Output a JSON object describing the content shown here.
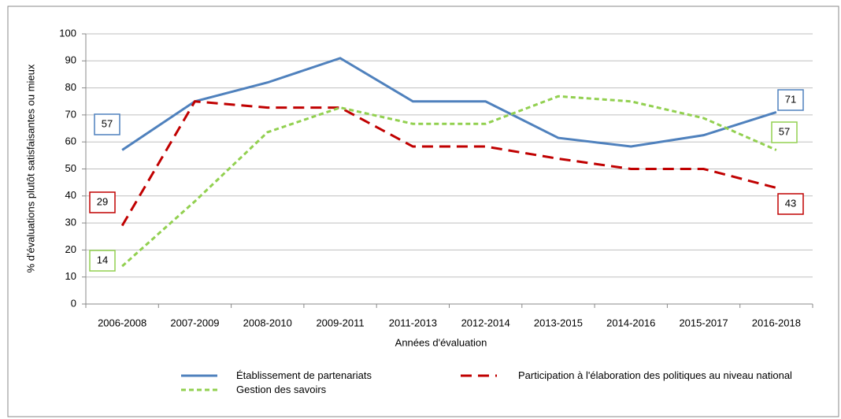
{
  "chart_data": {
    "type": "line",
    "ylabel": "% d'évaluations plutôt satisfaisantes ou mieux",
    "xlabel": "Années d'évaluation",
    "categories": [
      "2006-2008",
      "2007-2009",
      "2008-2010",
      "2009-2011",
      "2011-2013",
      "2012-2014",
      "2013-2015",
      "2014-2016",
      "2015-2017",
      "2016-2018"
    ],
    "series": [
      {
        "name": "Établissement de partenariats",
        "color": "#4f81bd",
        "dash": "solid",
        "values": [
          57,
          75,
          82,
          91,
          75,
          75,
          61.5,
          58.3,
          62.5,
          71
        ]
      },
      {
        "name": "Participation à l'élaboration des politiques au niveau national",
        "color": "#c00000",
        "dash": "dashed",
        "values": [
          29,
          75,
          72.7,
          72.7,
          58.3,
          58.3,
          53.8,
          50,
          50,
          43
        ]
      },
      {
        "name": "Gestion des savoirs",
        "color": "#92d050",
        "dash": "dotted",
        "values": [
          14,
          38,
          63.6,
          72.7,
          66.7,
          66.7,
          76.9,
          75,
          68.8,
          57
        ]
      }
    ],
    "ylim": [
      0,
      100
    ],
    "yticks": [
      0,
      10,
      20,
      30,
      40,
      50,
      60,
      70,
      80,
      90,
      100
    ],
    "grid": true
  }
}
